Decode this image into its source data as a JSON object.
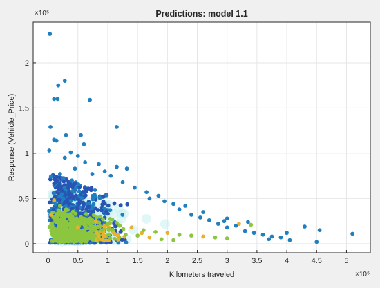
{
  "chart_data": {
    "type": "scatter",
    "title": "Predictions: model 1.1",
    "xlabel": "Kilometers traveled",
    "ylabel": "Response (Vehicle_Price)",
    "x_exponent_label": "×10⁵",
    "y_exponent_label": "×10⁵",
    "xlim": [
      -0.25,
      5.4
    ],
    "ylim": [
      -0.1,
      2.45
    ],
    "x_ticks": [
      0,
      0.5,
      1,
      1.5,
      2,
      2.5,
      3,
      3.5,
      4,
      4.5,
      5
    ],
    "x_tick_labels": [
      "0",
      "0.5",
      "1",
      "1.5",
      "2",
      "2.5",
      "3",
      "3.5",
      "4",
      "4.5",
      "5"
    ],
    "y_ticks": [
      0,
      0.5,
      1,
      1.5,
      2
    ],
    "y_tick_labels": [
      "0",
      "0.5",
      "1",
      "1.5",
      "2"
    ],
    "grid": true,
    "colors": {
      "true_response": "#2855b4",
      "true_response_alt": "#1f7fbf",
      "prediction": "#8cc63f",
      "prediction_alt": "#e8b22a",
      "prediction_halo": "#c8f0f0",
      "axes_bg": "#ffffff",
      "grid": "#e6e6e6"
    },
    "series": [
      {
        "role": "true",
        "points": [
          [
            0.03,
            2.32
          ],
          [
            0.28,
            1.8
          ],
          [
            0.17,
            1.75
          ],
          [
            0.1,
            1.6
          ],
          [
            0.16,
            1.6
          ],
          [
            0.7,
            1.59
          ],
          [
            0.04,
            1.29
          ],
          [
            1.15,
            1.29
          ],
          [
            0.3,
            1.2
          ],
          [
            0.55,
            1.2
          ],
          [
            0.1,
            1.15
          ],
          [
            0.14,
            1.14
          ],
          [
            0.6,
            1.1
          ],
          [
            0.28,
            0.95
          ],
          [
            0.38,
            1.01
          ],
          [
            0.5,
            0.97
          ],
          [
            0.02,
            1.03
          ],
          [
            0.62,
            0.9
          ],
          [
            0.85,
            0.88
          ],
          [
            1.15,
            0.85
          ],
          [
            1.32,
            0.83
          ],
          [
            1.05,
            0.75
          ],
          [
            0.95,
            0.8
          ],
          [
            0.74,
            0.77
          ],
          [
            0.45,
            0.83
          ],
          [
            0.2,
            0.77
          ],
          [
            0.4,
            0.7
          ],
          [
            1.25,
            0.68
          ],
          [
            1.45,
            0.62
          ],
          [
            1.65,
            0.57
          ],
          [
            1.85,
            0.53
          ],
          [
            2.1,
            0.44
          ],
          [
            2.2,
            0.38
          ],
          [
            2.4,
            0.32
          ],
          [
            2.55,
            0.29
          ],
          [
            2.7,
            0.26
          ],
          [
            2.85,
            0.22
          ],
          [
            3.0,
            0.18
          ],
          [
            3.15,
            0.2
          ],
          [
            3.3,
            0.14
          ],
          [
            3.45,
            0.12
          ],
          [
            3.6,
            0.1
          ],
          [
            3.75,
            0.08
          ],
          [
            3.9,
            0.07
          ],
          [
            4.05,
            0.04
          ],
          [
            4.3,
            0.19
          ],
          [
            4.55,
            0.15
          ],
          [
            4.5,
            0.02
          ],
          [
            5.1,
            0.11
          ],
          [
            3.0,
            0.28
          ],
          [
            2.95,
            0.25
          ],
          [
            2.6,
            0.35
          ],
          [
            2.3,
            0.42
          ],
          [
            1.95,
            0.47
          ],
          [
            1.7,
            0.5
          ],
          [
            3.35,
            0.24
          ],
          [
            3.7,
            0.05
          ],
          [
            4.0,
            0.12
          ]
        ]
      },
      {
        "role": "predicted",
        "points": [
          [
            0.1,
            0.48
          ],
          [
            0.2,
            0.42
          ],
          [
            0.3,
            0.38
          ],
          [
            0.05,
            0.32
          ],
          [
            0.4,
            0.3
          ],
          [
            0.6,
            0.28
          ],
          [
            0.8,
            0.25
          ],
          [
            1.0,
            0.22
          ],
          [
            1.2,
            0.2
          ],
          [
            1.4,
            0.18
          ],
          [
            1.6,
            0.15
          ],
          [
            1.8,
            0.13
          ],
          [
            2.0,
            0.12
          ],
          [
            2.2,
            0.1
          ],
          [
            2.4,
            0.09
          ],
          [
            2.6,
            0.08
          ],
          [
            2.8,
            0.07
          ],
          [
            3.0,
            0.06
          ],
          [
            3.2,
            0.22
          ],
          [
            3.4,
            0.21
          ],
          [
            0.9,
            0.15
          ],
          [
            1.1,
            0.12
          ],
          [
            1.3,
            0.1
          ],
          [
            1.5,
            0.09
          ],
          [
            1.7,
            0.07
          ],
          [
            1.9,
            0.05
          ],
          [
            2.1,
            0.04
          ],
          [
            0.5,
            0.18
          ],
          [
            0.7,
            0.12
          ],
          [
            0.25,
            0.2
          ]
        ]
      }
    ]
  }
}
